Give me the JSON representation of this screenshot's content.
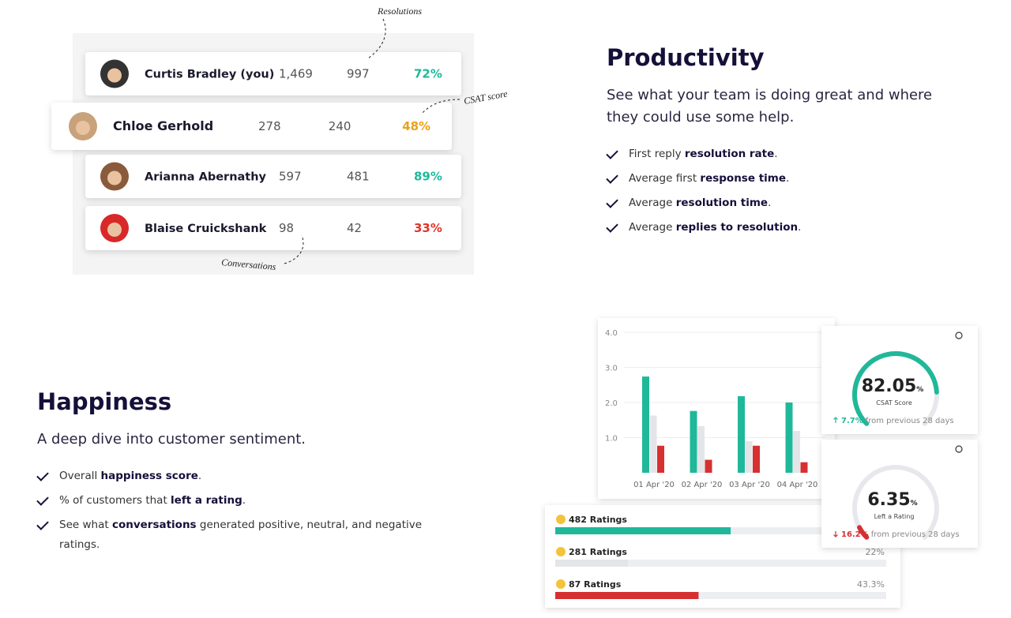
{
  "leaderboard": {
    "annotations": {
      "resolutions": "Resolutions",
      "csat": "CSAT score",
      "conversations": "Conversations"
    },
    "rows": [
      {
        "name": "Curtis Bradley (you)",
        "conversations": "1,469",
        "resolutions": "997",
        "csat": "72%",
        "color": "#20b89a"
      },
      {
        "name": "Chloe Gerhold",
        "conversations": "278",
        "resolutions": "240",
        "csat": "48%",
        "color": "#e8a317"
      },
      {
        "name": "Arianna Abernathy",
        "conversations": "597",
        "resolutions": "481",
        "csat": "89%",
        "color": "#20b89a"
      },
      {
        "name": "Blaise Cruickshank",
        "conversations": "98",
        "resolutions": "42",
        "csat": "33%",
        "color": "#e0352b"
      }
    ]
  },
  "productivity": {
    "title": "Productivity",
    "subtitle": "See what your team is doing great and where they could use some help.",
    "bullets": [
      {
        "before": "First reply ",
        "bold": "resolution rate",
        "after": "."
      },
      {
        "before": "Average first ",
        "bold": "response time",
        "after": "."
      },
      {
        "before": "Average ",
        "bold": "resolution time",
        "after": "."
      },
      {
        "before": "Average ",
        "bold": "replies to resolution",
        "after": "."
      }
    ]
  },
  "happiness": {
    "title": "Happiness",
    "subtitle": "A deep dive into customer sentiment.",
    "bullets": [
      {
        "before": "Overall ",
        "bold": "happiness score",
        "after": "."
      },
      {
        "before": "% of customers that ",
        "bold": "left a rating",
        "after": "."
      },
      {
        "before": "See what ",
        "bold": "conversations",
        "after": " generated positive, neutral, and negative ratings."
      }
    ]
  },
  "bar_chart": {
    "type": "bar",
    "categories": [
      "01 Apr '20",
      "02 Apr '20",
      "03 Apr '20",
      "04 Apr '20"
    ],
    "series": [
      {
        "color": "#20b89a",
        "values": [
          2.74,
          1.76,
          2.18,
          2.0
        ]
      },
      {
        "color": "#e4e5e8",
        "values": [
          1.63,
          1.33,
          0.9,
          1.19
        ]
      },
      {
        "color": "#d63031",
        "values": [
          0.77,
          0.37,
          0.77,
          0.3
        ]
      }
    ],
    "ylim": [
      0,
      4
    ],
    "yticks": [
      {
        "value": 1,
        "label": "1.0"
      },
      {
        "value": 2,
        "label": "2.0"
      },
      {
        "value": 3,
        "label": "3.0"
      },
      {
        "value": 4,
        "label": "4.0"
      }
    ],
    "grid": true
  },
  "gauges": [
    {
      "value": 82.05,
      "unit": "%",
      "label": "CSAT Score",
      "change": "7.7%",
      "change_text": "from previous 28 days",
      "direction": "up",
      "color": "#20b89a"
    },
    {
      "value": 6.35,
      "unit": "%",
      "label": "Left a Rating",
      "change": "16.2%",
      "change_text": "from previous 28 days",
      "direction": "down",
      "color": "#d63031"
    }
  ],
  "ratings": [
    {
      "label": "482 Ratings",
      "share": 53,
      "color": "#20b89a"
    },
    {
      "label": "281 Ratings",
      "share": 22,
      "share_label": "22%",
      "color": "#e4e5e8"
    },
    {
      "label": "87 Ratings",
      "share": 43.3,
      "share_label": "43.3%",
      "color": "#d63031"
    }
  ]
}
